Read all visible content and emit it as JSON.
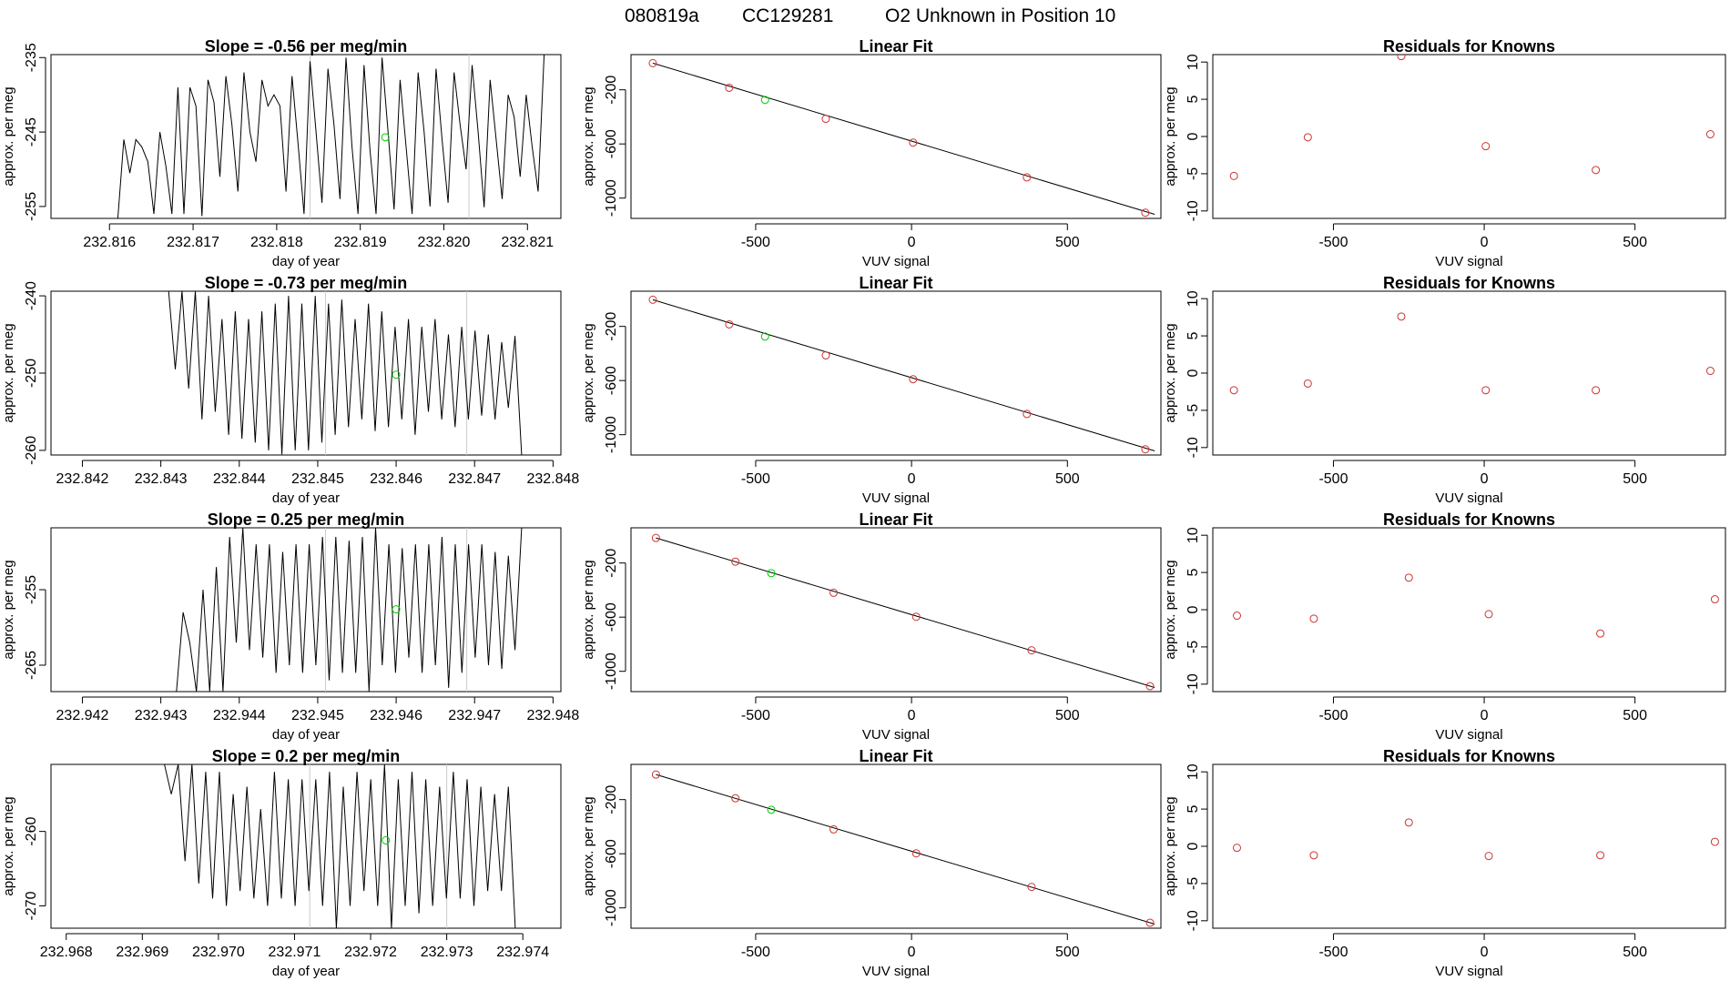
{
  "figure": {
    "header": {
      "run_id": "080819a",
      "cylinder": "CC129281",
      "description": "O2 Unknown in Position  10"
    },
    "colors": {
      "axis": "#000000",
      "trace": "#000000",
      "marker_known": "#cd3333",
      "marker_unknown": "#00cc00",
      "window_line": "#cccccc"
    }
  },
  "chart_data": [
    {
      "type": "line",
      "panel": "time-series",
      "row": 1,
      "title": "Slope =  -0.56  per meg/min",
      "xlabel": "day of year",
      "ylabel": "approx. per meg",
      "xlim": [
        232.8153,
        232.8214
      ],
      "ylim": [
        -256.6,
        -234.6
      ],
      "xticks": [
        "232.816",
        "232.817",
        "232.818",
        "232.819",
        "232.820",
        "232.821"
      ],
      "yticks": [
        "-235",
        "-245",
        "-255"
      ],
      "window_lines": [
        232.8184,
        232.8203
      ],
      "unknown_point": {
        "x": 232.8193,
        "y": -245.7
      },
      "series": {
        "t_start": 232.8161,
        "t_end": 232.8212,
        "values": [
          -256.6,
          -246,
          -250.5,
          -246,
          -247,
          -249,
          -256,
          -245,
          -249.6,
          -256,
          -239,
          -256,
          -239,
          -241.5,
          -256.3,
          -238,
          -241,
          -251,
          -237.5,
          -244,
          -253,
          -237,
          -245,
          -249,
          -238,
          -241.5,
          -240,
          -241.5,
          -253,
          -237.5,
          -246.5,
          -256,
          -235.5,
          -245,
          -254.5,
          -236.5,
          -244,
          -254,
          -235,
          -247,
          -256,
          -236,
          -247.5,
          -256,
          -235,
          -245,
          -255.4,
          -238,
          -247,
          -256,
          -237,
          -245,
          -255,
          -236.5,
          -246,
          -254.5,
          -237,
          -244,
          -250,
          -236,
          -245,
          -255.1,
          -238,
          -246,
          -254,
          -240,
          -243,
          -251,
          -240,
          -247,
          -253,
          -234.6
        ]
      }
    },
    {
      "type": "scatter",
      "panel": "linear-fit",
      "row": 1,
      "title": "Linear Fit",
      "xlabel": "VUV signal",
      "ylabel": "approx. per meg",
      "xlim": [
        -900,
        800
      ],
      "ylim": [
        -1150,
        60
      ],
      "xticks": [
        -500,
        0,
        500
      ],
      "yticks": [
        -200,
        -600,
        -1000
      ],
      "knowns": [
        {
          "x": -830,
          "y": -3
        },
        {
          "x": -585,
          "y": -185
        },
        {
          "x": -275,
          "y": -414
        },
        {
          "x": 5,
          "y": -590
        },
        {
          "x": 370,
          "y": -847
        },
        {
          "x": 750,
          "y": -1108
        }
      ],
      "unknown": {
        "x": -470,
        "y": -275
      },
      "fit_line": {
        "x": [
          -830,
          780
        ],
        "y": [
          -3,
          -1120
        ]
      }
    },
    {
      "type": "scatter",
      "panel": "residuals",
      "row": 1,
      "title": "Residuals for Knowns",
      "xlabel": "VUV signal",
      "ylabel": "approx. per meg",
      "xlim": [
        -900,
        800
      ],
      "ylim": [
        -11,
        11
      ],
      "xticks": [
        -500,
        0,
        500
      ],
      "yticks": [
        10,
        5,
        0,
        -5,
        -10
      ],
      "knowns": [
        {
          "x": -830,
          "y": -5.3
        },
        {
          "x": -585,
          "y": -0.1
        },
        {
          "x": -275,
          "y": 10.8
        },
        {
          "x": 5,
          "y": -1.3
        },
        {
          "x": 370,
          "y": -4.5
        },
        {
          "x": 750,
          "y": 0.3
        }
      ]
    },
    {
      "type": "line",
      "panel": "time-series",
      "row": 2,
      "title": "Slope =  -0.73  per meg/min",
      "xlabel": "day of year",
      "ylabel": "approx. per meg",
      "xlim": [
        232.8416,
        232.8481
      ],
      "ylim": [
        -260.6,
        -239.4
      ],
      "xticks": [
        "232.842",
        "232.843",
        "232.844",
        "232.845",
        "232.846",
        "232.847",
        "232.848"
      ],
      "yticks": [
        "-240",
        "-250",
        "-260"
      ],
      "window_lines": [
        232.8451,
        232.8469
      ],
      "unknown_point": {
        "x": 232.846,
        "y": -250.2
      },
      "series": {
        "t_start": 232.8431,
        "t_end": 232.8476,
        "values": [
          -239.4,
          -249.5,
          -239.4,
          -252,
          -239.4,
          -256,
          -240,
          -255,
          -243,
          -258,
          -242,
          -258.5,
          -243,
          -259,
          -242,
          -260,
          -241,
          -260.5,
          -240,
          -260,
          -241,
          -260,
          -240,
          -259,
          -241,
          -258,
          -240.5,
          -257,
          -243,
          -256,
          -241,
          -257.5,
          -242,
          -257,
          -244,
          -256,
          -243,
          -258,
          -244,
          -255,
          -243,
          -256,
          -245,
          -257,
          -244,
          -256,
          -244.5,
          -255.5,
          -245,
          -256,
          -246,
          -254.5,
          -245.2,
          -260.6
        ]
      }
    },
    {
      "type": "scatter",
      "panel": "linear-fit",
      "row": 2,
      "title": "Linear Fit",
      "xlabel": "VUV signal",
      "ylabel": "approx. per meg",
      "xlim": [
        -900,
        800
      ],
      "ylim": [
        -1150,
        60
      ],
      "xticks": [
        -500,
        0,
        500
      ],
      "yticks": [
        -200,
        -600,
        -1000
      ],
      "knowns": [
        {
          "x": -830,
          "y": -3
        },
        {
          "x": -585,
          "y": -185
        },
        {
          "x": -275,
          "y": -414
        },
        {
          "x": 5,
          "y": -590
        },
        {
          "x": 370,
          "y": -847
        },
        {
          "x": 750,
          "y": -1108
        }
      ],
      "unknown": {
        "x": -470,
        "y": -275
      },
      "fit_line": {
        "x": [
          -830,
          780
        ],
        "y": [
          -3,
          -1120
        ]
      }
    },
    {
      "type": "scatter",
      "panel": "residuals",
      "row": 2,
      "title": "Residuals for Knowns",
      "xlabel": "VUV signal",
      "ylabel": "approx. per meg",
      "xlim": [
        -900,
        800
      ],
      "ylim": [
        -11,
        11
      ],
      "xticks": [
        -500,
        0,
        500
      ],
      "yticks": [
        10,
        5,
        0,
        -5,
        -10
      ],
      "knowns": [
        {
          "x": -830,
          "y": -2.3
        },
        {
          "x": -585,
          "y": -1.4
        },
        {
          "x": -275,
          "y": 7.6
        },
        {
          "x": 5,
          "y": -2.3
        },
        {
          "x": 370,
          "y": -2.3
        },
        {
          "x": 750,
          "y": 0.3
        }
      ]
    },
    {
      "type": "line",
      "panel": "time-series",
      "row": 3,
      "title": "Slope =  0.25  per meg/min",
      "xlabel": "day of year",
      "ylabel": "approx. per meg",
      "xlim": [
        232.9416,
        232.9481
      ],
      "ylim": [
        -268.5,
        -246.8
      ],
      "xticks": [
        "232.942",
        "232.943",
        "232.944",
        "232.945",
        "232.946",
        "232.947",
        "232.948"
      ],
      "yticks": [
        "-255",
        "-265"
      ],
      "window_lines": [
        232.9451,
        232.9469
      ],
      "unknown_point": {
        "x": 232.946,
        "y": -257.6
      },
      "series": {
        "t_start": 232.9432,
        "t_end": 232.9476,
        "values": [
          -268.5,
          -258,
          -262,
          -268.5,
          -255,
          -268.5,
          -252,
          -268.5,
          -248,
          -262,
          -246.8,
          -263,
          -249,
          -264,
          -249,
          -266,
          -250,
          -265,
          -249,
          -266,
          -249,
          -265,
          -248,
          -267,
          -248,
          -266,
          -248.5,
          -266,
          -248,
          -268.5,
          -246.8,
          -265,
          -249,
          -266,
          -249.5,
          -264,
          -249,
          -266,
          -249,
          -265,
          -248,
          -268,
          -249,
          -266,
          -249,
          -264,
          -249,
          -265,
          -250,
          -265.5,
          -250.5,
          -263,
          -246.8
        ]
      }
    },
    {
      "type": "scatter",
      "panel": "linear-fit",
      "row": 3,
      "title": "Linear Fit",
      "xlabel": "VUV signal",
      "ylabel": "approx. per meg",
      "xlim": [
        -900,
        800
      ],
      "ylim": [
        -1150,
        60
      ],
      "xticks": [
        -500,
        0,
        500
      ],
      "yticks": [
        -200,
        -600,
        -1000
      ],
      "knowns": [
        {
          "x": -820,
          "y": -15
        },
        {
          "x": -565,
          "y": -190
        },
        {
          "x": -250,
          "y": -420
        },
        {
          "x": 15,
          "y": -597
        },
        {
          "x": 385,
          "y": -845
        },
        {
          "x": 765,
          "y": -1110
        }
      ],
      "unknown": {
        "x": -450,
        "y": -275
      },
      "fit_line": {
        "x": [
          -820,
          780
        ],
        "y": [
          -15,
          -1120
        ]
      }
    },
    {
      "type": "scatter",
      "panel": "residuals",
      "row": 3,
      "title": "Residuals for Knowns",
      "xlabel": "VUV signal",
      "ylabel": "approx. per meg",
      "xlim": [
        -900,
        800
      ],
      "ylim": [
        -11,
        11
      ],
      "xticks": [
        -500,
        0,
        500
      ],
      "yticks": [
        10,
        5,
        0,
        -5,
        -10
      ],
      "knowns": [
        {
          "x": -820,
          "y": -0.8
        },
        {
          "x": -565,
          "y": -1.2
        },
        {
          "x": -250,
          "y": 4.3
        },
        {
          "x": 15,
          "y": -0.6
        },
        {
          "x": 385,
          "y": -3.2
        },
        {
          "x": 765,
          "y": 1.4
        }
      ]
    },
    {
      "type": "line",
      "panel": "time-series",
      "row": 4,
      "title": "Slope =  0.2  per meg/min",
      "xlabel": "day of year",
      "ylabel": "approx. per meg",
      "xlim": [
        232.9678,
        232.9745
      ],
      "ylim": [
        -273,
        -251
      ],
      "xticks": [
        "232.968",
        "232.969",
        "232.970",
        "232.971",
        "232.972",
        "232.973",
        "232.974"
      ],
      "yticks": [
        "-260",
        "-270"
      ],
      "window_lines": [
        232.9712,
        232.973
      ],
      "unknown_point": {
        "x": 232.9722,
        "y": -261.2
      },
      "series": {
        "t_start": 232.9692,
        "t_end": 232.9739,
        "values": [
          -251,
          -251,
          -255,
          -251,
          -264,
          -251,
          -267,
          -252,
          -269,
          -252,
          -270,
          -255,
          -268,
          -254,
          -269,
          -257,
          -270,
          -252,
          -269,
          -253,
          -270,
          -253,
          -268,
          -253,
          -270,
          -252,
          -273,
          -254,
          -270,
          -252,
          -268,
          -253,
          -270,
          -251,
          -273,
          -253,
          -270,
          -252,
          -271,
          -253,
          -270,
          -254,
          -269,
          -252,
          -269,
          -253,
          -270,
          -254,
          -268,
          -255,
          -268,
          -254,
          -273
        ]
      }
    },
    {
      "type": "scatter",
      "panel": "linear-fit",
      "row": 4,
      "title": "Linear Fit",
      "xlabel": "VUV signal",
      "ylabel": "approx. per meg",
      "xlim": [
        -900,
        800
      ],
      "ylim": [
        -1150,
        60
      ],
      "xticks": [
        -500,
        0,
        500
      ],
      "yticks": [
        -200,
        -600,
        -1000
      ],
      "knowns": [
        {
          "x": -820,
          "y": -15
        },
        {
          "x": -565,
          "y": -190
        },
        {
          "x": -250,
          "y": -420
        },
        {
          "x": 15,
          "y": -597
        },
        {
          "x": 385,
          "y": -845
        },
        {
          "x": 765,
          "y": -1110
        }
      ],
      "unknown": {
        "x": -450,
        "y": -275
      },
      "fit_line": {
        "x": [
          -820,
          780
        ],
        "y": [
          -15,
          -1120
        ]
      }
    },
    {
      "type": "scatter",
      "panel": "residuals",
      "row": 4,
      "title": "Residuals for Knowns",
      "xlabel": "VUV signal",
      "ylabel": "approx. per meg",
      "xlim": [
        -900,
        800
      ],
      "ylim": [
        -11,
        11
      ],
      "xticks": [
        -500,
        0,
        500
      ],
      "yticks": [
        10,
        5,
        0,
        -5,
        -10
      ],
      "knowns": [
        {
          "x": -820,
          "y": -0.2
        },
        {
          "x": -565,
          "y": -1.2
        },
        {
          "x": -250,
          "y": 3.2
        },
        {
          "x": 15,
          "y": -1.3
        },
        {
          "x": 385,
          "y": -1.2
        },
        {
          "x": 765,
          "y": 0.6
        }
      ]
    }
  ]
}
